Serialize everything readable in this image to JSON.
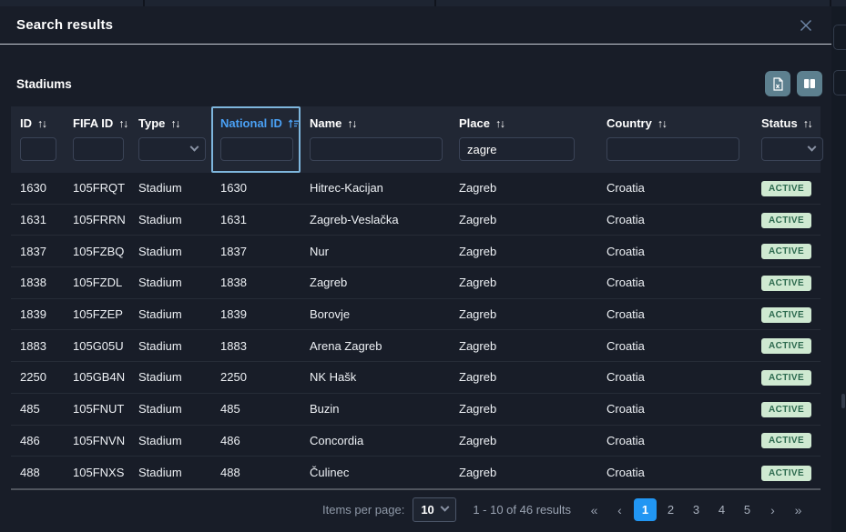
{
  "modal": {
    "title": "Search results"
  },
  "toolbar": {
    "section_title": "Stadiums"
  },
  "icons": {
    "sort_both": "↑↓",
    "first": "«",
    "prev": "‹",
    "next": "›",
    "last": "»"
  },
  "table": {
    "columns": [
      {
        "key": "id",
        "label": "ID",
        "filter_type": "input",
        "filter_value": "",
        "sorted": false
      },
      {
        "key": "fifa_id",
        "label": "FIFA ID",
        "filter_type": "input",
        "filter_value": "",
        "sorted": false
      },
      {
        "key": "type",
        "label": "Type",
        "filter_type": "select",
        "filter_value": "",
        "sorted": false
      },
      {
        "key": "national_id",
        "label": "National ID",
        "filter_type": "input",
        "filter_value": "",
        "sorted": true,
        "sort_direction": "asc"
      },
      {
        "key": "name",
        "label": "Name",
        "filter_type": "input",
        "filter_value": "",
        "sorted": false
      },
      {
        "key": "place",
        "label": "Place",
        "filter_type": "input",
        "filter_value": "zagre",
        "sorted": false
      },
      {
        "key": "country",
        "label": "Country",
        "filter_type": "input",
        "filter_value": "",
        "sorted": false
      },
      {
        "key": "status",
        "label": "Status",
        "filter_type": "select",
        "filter_value": "",
        "sorted": false
      }
    ],
    "rows": [
      {
        "id": "1630",
        "fifa_id": "105FRQT",
        "type": "Stadium",
        "national_id": "1630",
        "name": "Hitrec-Kacijan",
        "place": "Zagreb",
        "country": "Croatia",
        "status": "ACTIVE"
      },
      {
        "id": "1631",
        "fifa_id": "105FRRN",
        "type": "Stadium",
        "national_id": "1631",
        "name": "Zagreb-Veslačka",
        "place": "Zagreb",
        "country": "Croatia",
        "status": "ACTIVE"
      },
      {
        "id": "1837",
        "fifa_id": "105FZBQ",
        "type": "Stadium",
        "national_id": "1837",
        "name": "Nur",
        "place": "Zagreb",
        "country": "Croatia",
        "status": "ACTIVE"
      },
      {
        "id": "1838",
        "fifa_id": "105FZDL",
        "type": "Stadium",
        "national_id": "1838",
        "name": "Zagreb",
        "place": "Zagreb",
        "country": "Croatia",
        "status": "ACTIVE"
      },
      {
        "id": "1839",
        "fifa_id": "105FZEP",
        "type": "Stadium",
        "national_id": "1839",
        "name": "Borovje",
        "place": "Zagreb",
        "country": "Croatia",
        "status": "ACTIVE"
      },
      {
        "id": "1883",
        "fifa_id": "105G05U",
        "type": "Stadium",
        "national_id": "1883",
        "name": "Arena Zagreb",
        "place": "Zagreb",
        "country": "Croatia",
        "status": "ACTIVE"
      },
      {
        "id": "2250",
        "fifa_id": "105GB4N",
        "type": "Stadium",
        "national_id": "2250",
        "name": "NK Hašk",
        "place": "Zagreb",
        "country": "Croatia",
        "status": "ACTIVE"
      },
      {
        "id": "485",
        "fifa_id": "105FNUT",
        "type": "Stadium",
        "national_id": "485",
        "name": "Buzin",
        "place": "Zagreb",
        "country": "Croatia",
        "status": "ACTIVE"
      },
      {
        "id": "486",
        "fifa_id": "105FNVN",
        "type": "Stadium",
        "national_id": "486",
        "name": "Concordia",
        "place": "Zagreb",
        "country": "Croatia",
        "status": "ACTIVE"
      },
      {
        "id": "488",
        "fifa_id": "105FNXS",
        "type": "Stadium",
        "national_id": "488",
        "name": "Čulinec",
        "place": "Zagreb",
        "country": "Croatia",
        "status": "ACTIVE"
      }
    ]
  },
  "pagination": {
    "items_per_page_label": "Items per page:",
    "items_per_page_value": "10",
    "range_text": "1 - 10 of 46 results",
    "pages": [
      "1",
      "2",
      "3",
      "4",
      "5"
    ],
    "active_page": "1"
  },
  "colors": {
    "accent_blue": "#2196f3",
    "sorted_column_blue": "#4aa0f4",
    "sorted_border": "#7eb6dd",
    "badge_bg": "#cfe9d1",
    "badge_text": "#2d6a4f",
    "toolbar_button_bg": "#5d808f"
  }
}
